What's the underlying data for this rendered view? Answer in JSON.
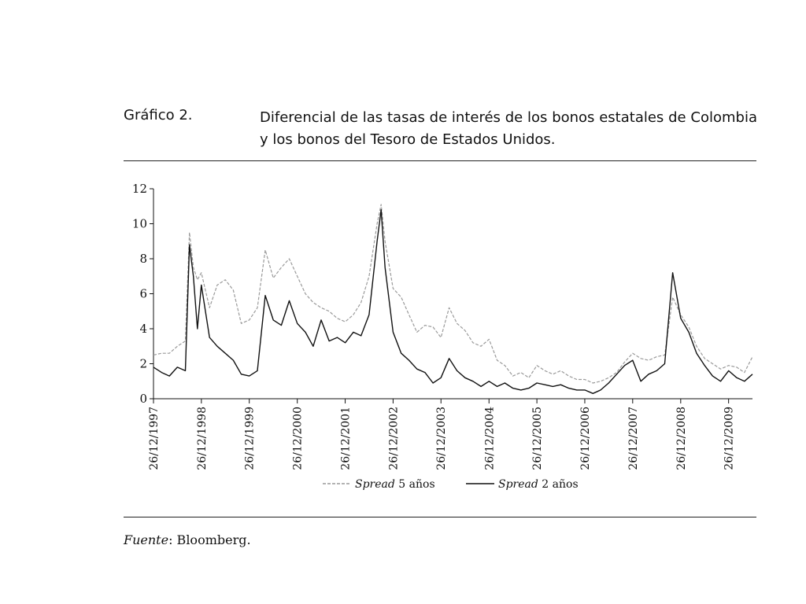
{
  "figure": {
    "label": "Gráfico 2.",
    "title": "Diferencial de las tasas de interés de los bonos estatales de Colombia y los bonos del Tesoro de Estados Unidos.",
    "source_label": "Fuente",
    "source_value": ": Bloomberg."
  },
  "chart_data": {
    "type": "line",
    "title": "",
    "xlabel": "",
    "ylabel": "",
    "x_start": "26/12/1997",
    "x_end": "26/06/2010",
    "xlim": [
      "26/12/1997",
      "26/06/2010"
    ],
    "ylim": [
      0,
      12
    ],
    "yticks": [
      0,
      2,
      4,
      6,
      8,
      10,
      12
    ],
    "xticks": [
      "26/12/1997",
      "26/12/1998",
      "26/12/1999",
      "26/12/2000",
      "26/12/2001",
      "26/12/2002",
      "26/12/2003",
      "26/12/2004",
      "26/12/2005",
      "26/12/2006",
      "26/12/2007",
      "26/12/2008",
      "26/12/2009"
    ],
    "grid": false,
    "legend_position": "bottom-center",
    "series": [
      {
        "name": "Spread 5 años",
        "style": "dashed",
        "color": "#9a9a9a",
        "points": [
          [
            "26/12/1997",
            2.5
          ],
          [
            "26/02/1998",
            2.6
          ],
          [
            "26/04/1998",
            2.6
          ],
          [
            "26/06/1998",
            3.0
          ],
          [
            "26/08/1998",
            3.3
          ],
          [
            "26/09/1998",
            9.5
          ],
          [
            "26/10/1998",
            7.5
          ],
          [
            "26/11/1998",
            6.8
          ],
          [
            "26/12/1998",
            7.2
          ],
          [
            "26/02/1999",
            5.2
          ],
          [
            "26/04/1999",
            6.5
          ],
          [
            "26/06/1999",
            6.8
          ],
          [
            "26/08/1999",
            6.2
          ],
          [
            "26/10/1999",
            4.3
          ],
          [
            "26/12/1999",
            4.5
          ],
          [
            "26/02/2000",
            5.2
          ],
          [
            "26/04/2000",
            8.5
          ],
          [
            "26/06/2000",
            6.9
          ],
          [
            "26/08/2000",
            7.5
          ],
          [
            "26/10/2000",
            8.0
          ],
          [
            "26/12/2000",
            7.0
          ],
          [
            "26/02/2001",
            6.0
          ],
          [
            "26/04/2001",
            5.5
          ],
          [
            "26/06/2001",
            5.2
          ],
          [
            "26/08/2001",
            5.0
          ],
          [
            "26/10/2001",
            4.6
          ],
          [
            "26/12/2001",
            4.4
          ],
          [
            "26/02/2002",
            4.8
          ],
          [
            "26/04/2002",
            5.5
          ],
          [
            "26/06/2002",
            7.0
          ],
          [
            "26/08/2002",
            10.0
          ],
          [
            "26/09/2002",
            11.1
          ],
          [
            "26/10/2002",
            9.0
          ],
          [
            "26/12/2002",
            6.3
          ],
          [
            "26/02/2003",
            5.8
          ],
          [
            "26/04/2003",
            4.8
          ],
          [
            "26/06/2003",
            3.8
          ],
          [
            "26/08/2003",
            4.2
          ],
          [
            "26/10/2003",
            4.1
          ],
          [
            "26/12/2003",
            3.5
          ],
          [
            "26/02/2004",
            5.2
          ],
          [
            "26/04/2004",
            4.3
          ],
          [
            "26/06/2004",
            3.9
          ],
          [
            "26/08/2004",
            3.2
          ],
          [
            "26/10/2004",
            3.0
          ],
          [
            "26/12/2004",
            3.4
          ],
          [
            "26/02/2005",
            2.2
          ],
          [
            "26/04/2005",
            1.9
          ],
          [
            "26/06/2005",
            1.3
          ],
          [
            "26/08/2005",
            1.5
          ],
          [
            "26/10/2005",
            1.2
          ],
          [
            "26/12/2005",
            1.9
          ],
          [
            "26/02/2006",
            1.6
          ],
          [
            "26/04/2006",
            1.4
          ],
          [
            "26/06/2006",
            1.6
          ],
          [
            "26/08/2006",
            1.3
          ],
          [
            "26/10/2006",
            1.1
          ],
          [
            "26/12/2006",
            1.1
          ],
          [
            "26/02/2007",
            0.9
          ],
          [
            "26/04/2007",
            1.0
          ],
          [
            "26/06/2007",
            1.2
          ],
          [
            "26/08/2007",
            1.5
          ],
          [
            "26/10/2007",
            2.1
          ],
          [
            "26/12/2007",
            2.6
          ],
          [
            "26/02/2008",
            2.3
          ],
          [
            "26/04/2008",
            2.2
          ],
          [
            "26/06/2008",
            2.4
          ],
          [
            "26/08/2008",
            2.5
          ],
          [
            "26/10/2008",
            5.8
          ],
          [
            "26/12/2008",
            4.8
          ],
          [
            "26/02/2009",
            4.1
          ],
          [
            "26/04/2009",
            3.0
          ],
          [
            "26/06/2009",
            2.3
          ],
          [
            "26/08/2009",
            2.0
          ],
          [
            "26/10/2009",
            1.7
          ],
          [
            "26/12/2009",
            1.9
          ],
          [
            "26/02/2010",
            1.8
          ],
          [
            "26/04/2010",
            1.5
          ],
          [
            "26/06/2010",
            2.4
          ]
        ]
      },
      {
        "name": "Spread 2 años",
        "style": "solid",
        "color": "#111111",
        "points": [
          [
            "26/12/1997",
            1.8
          ],
          [
            "26/02/1998",
            1.5
          ],
          [
            "26/04/1998",
            1.3
          ],
          [
            "26/06/1998",
            1.8
          ],
          [
            "26/08/1998",
            1.6
          ],
          [
            "26/09/1998",
            8.8
          ],
          [
            "26/10/1998",
            7.0
          ],
          [
            "26/11/1998",
            4.0
          ],
          [
            "26/12/1998",
            6.5
          ],
          [
            "26/02/1999",
            3.5
          ],
          [
            "26/04/1999",
            3.0
          ],
          [
            "26/06/1999",
            2.6
          ],
          [
            "26/08/1999",
            2.2
          ],
          [
            "26/10/1999",
            1.4
          ],
          [
            "26/12/1999",
            1.3
          ],
          [
            "26/02/2000",
            1.6
          ],
          [
            "26/04/2000",
            5.9
          ],
          [
            "26/06/2000",
            4.5
          ],
          [
            "26/08/2000",
            4.2
          ],
          [
            "26/10/2000",
            5.6
          ],
          [
            "26/12/2000",
            4.3
          ],
          [
            "26/02/2001",
            3.8
          ],
          [
            "26/04/2001",
            3.0
          ],
          [
            "26/06/2001",
            4.5
          ],
          [
            "26/08/2001",
            3.3
          ],
          [
            "26/10/2001",
            3.5
          ],
          [
            "26/12/2001",
            3.2
          ],
          [
            "26/02/2002",
            3.8
          ],
          [
            "26/04/2002",
            3.6
          ],
          [
            "26/06/2002",
            4.8
          ],
          [
            "26/08/2002",
            9.0
          ],
          [
            "26/09/2002",
            10.8
          ],
          [
            "26/10/2002",
            7.5
          ],
          [
            "26/12/2002",
            3.8
          ],
          [
            "26/02/2003",
            2.6
          ],
          [
            "26/04/2003",
            2.2
          ],
          [
            "26/06/2003",
            1.7
          ],
          [
            "26/08/2003",
            1.5
          ],
          [
            "26/10/2003",
            0.9
          ],
          [
            "26/12/2003",
            1.2
          ],
          [
            "26/02/2004",
            2.3
          ],
          [
            "26/04/2004",
            1.6
          ],
          [
            "26/06/2004",
            1.2
          ],
          [
            "26/08/2004",
            1.0
          ],
          [
            "26/10/2004",
            0.7
          ],
          [
            "26/12/2004",
            1.0
          ],
          [
            "26/02/2005",
            0.7
          ],
          [
            "26/04/2005",
            0.9
          ],
          [
            "26/06/2005",
            0.6
          ],
          [
            "26/08/2005",
            0.5
          ],
          [
            "26/10/2005",
            0.6
          ],
          [
            "26/12/2005",
            0.9
          ],
          [
            "26/02/2006",
            0.8
          ],
          [
            "26/04/2006",
            0.7
          ],
          [
            "26/06/2006",
            0.8
          ],
          [
            "26/08/2006",
            0.6
          ],
          [
            "26/10/2006",
            0.5
          ],
          [
            "26/12/2006",
            0.5
          ],
          [
            "26/02/2007",
            0.3
          ],
          [
            "26/04/2007",
            0.5
          ],
          [
            "26/06/2007",
            0.9
          ],
          [
            "26/08/2007",
            1.4
          ],
          [
            "26/10/2007",
            1.9
          ],
          [
            "26/12/2007",
            2.2
          ],
          [
            "26/02/2008",
            1.0
          ],
          [
            "26/04/2008",
            1.4
          ],
          [
            "26/06/2008",
            1.6
          ],
          [
            "26/08/2008",
            2.0
          ],
          [
            "26/10/2008",
            7.2
          ],
          [
            "26/12/2008",
            4.6
          ],
          [
            "26/02/2009",
            3.8
          ],
          [
            "26/04/2009",
            2.6
          ],
          [
            "26/06/2009",
            1.9
          ],
          [
            "26/08/2009",
            1.3
          ],
          [
            "26/10/2009",
            1.0
          ],
          [
            "26/12/2009",
            1.6
          ],
          [
            "26/02/2010",
            1.2
          ],
          [
            "26/04/2010",
            1.0
          ],
          [
            "26/06/2010",
            1.4
          ]
        ]
      }
    ]
  }
}
